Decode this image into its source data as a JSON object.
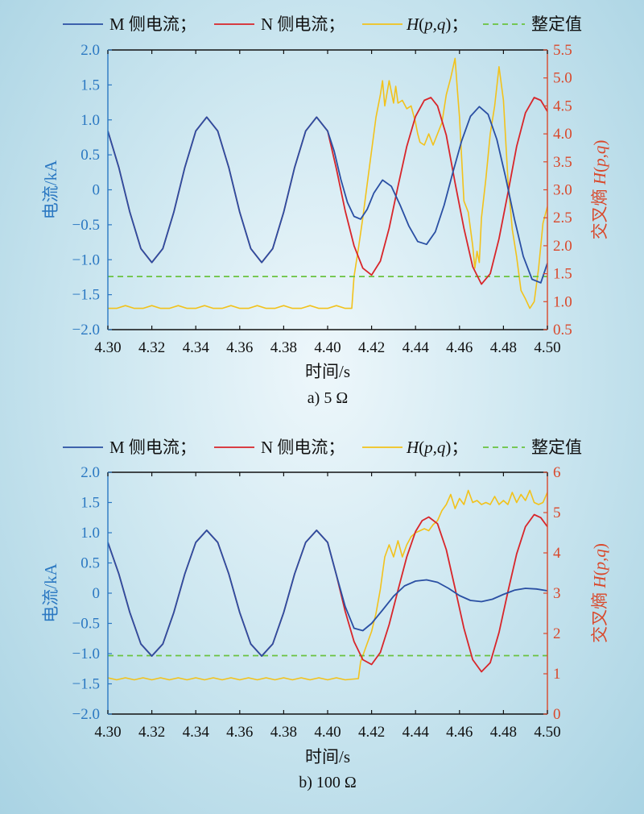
{
  "figure": {
    "legend": {
      "m_current": "M 侧电流；",
      "n_current": "N 侧电流；",
      "cross_entropy": "H(p,q)；",
      "setting": "整定值"
    },
    "colors": {
      "m": "#2a4fa3",
      "n": "#d8252a",
      "h": "#f2c21b",
      "setting": "#6ac23f",
      "left_axis": "#2b78c2",
      "right_axis": "#d9482b"
    }
  },
  "chart_data": [
    {
      "type": "line",
      "caption": "a) 5 Ω",
      "xlabel": "时间/s",
      "ylabel": "电流/kA",
      "y2label": "交叉熵 H(p,q)",
      "xlim": [
        4.3,
        4.5
      ],
      "ylim": [
        -2.0,
        2.0
      ],
      "y2lim": [
        0.5,
        5.5
      ],
      "xticks": [
        "4.30",
        "4.32",
        "4.34",
        "4.36",
        "4.38",
        "4.40",
        "4.42",
        "4.44",
        "4.46",
        "4.48",
        "4.50"
      ],
      "yticks": [
        "2.0",
        "1.5",
        "1.0",
        "0.5",
        "0",
        "−0.5",
        "−1.0",
        "−1.5",
        "−2.0"
      ],
      "y2ticks": [
        "5.5",
        "5.0",
        "4.5",
        "4.0",
        "3.5",
        "3.0",
        "2.5",
        "2.0",
        "1.5",
        "1.0",
        "0.5"
      ],
      "grid": false,
      "legend_position": "top",
      "series": [
        {
          "name": "M 侧电流",
          "axis": "left",
          "x": [
            4.3,
            4.305,
            4.31,
            4.315,
            4.32,
            4.325,
            4.33,
            4.335,
            4.34,
            4.345,
            4.35,
            4.355,
            4.36,
            4.365,
            4.37,
            4.375,
            4.38,
            4.385,
            4.39,
            4.395,
            4.4,
            4.403,
            4.406,
            4.409,
            4.412,
            4.415,
            4.418,
            4.421,
            4.425,
            4.429,
            4.433,
            4.437,
            4.441,
            4.445,
            4.449,
            4.453,
            4.457,
            4.461,
            4.465,
            4.469,
            4.473,
            4.477,
            4.481,
            4.485,
            4.489,
            4.493,
            4.497,
            4.5
          ],
          "y": [
            0.84,
            0.32,
            -0.32,
            -0.84,
            -1.04,
            -0.84,
            -0.32,
            0.32,
            0.84,
            1.04,
            0.84,
            0.32,
            -0.32,
            -0.84,
            -1.04,
            -0.84,
            -0.32,
            0.32,
            0.84,
            1.04,
            0.84,
            0.55,
            0.15,
            -0.18,
            -0.38,
            -0.42,
            -0.28,
            -0.05,
            0.14,
            0.05,
            -0.22,
            -0.52,
            -0.74,
            -0.78,
            -0.6,
            -0.22,
            0.25,
            0.7,
            1.05,
            1.19,
            1.08,
            0.72,
            0.18,
            -0.42,
            -0.95,
            -1.28,
            -1.33,
            -1.05
          ]
        },
        {
          "name": "N 侧电流",
          "axis": "left",
          "x": [
            4.3,
            4.305,
            4.31,
            4.315,
            4.32,
            4.325,
            4.33,
            4.335,
            4.34,
            4.345,
            4.35,
            4.355,
            4.36,
            4.365,
            4.37,
            4.375,
            4.38,
            4.385,
            4.39,
            4.395,
            4.4,
            4.404,
            4.408,
            4.412,
            4.416,
            4.42,
            4.424,
            4.428,
            4.432,
            4.436,
            4.44,
            4.444,
            4.447,
            4.45,
            4.454,
            4.458,
            4.462,
            4.466,
            4.47,
            4.474,
            4.478,
            4.482,
            4.486,
            4.49,
            4.494,
            4.497,
            4.5
          ],
          "y": [
            0.84,
            0.32,
            -0.32,
            -0.84,
            -1.04,
            -0.84,
            -0.32,
            0.32,
            0.84,
            1.04,
            0.84,
            0.32,
            -0.32,
            -0.84,
            -1.04,
            -0.84,
            -0.32,
            0.32,
            0.84,
            1.04,
            0.84,
            0.3,
            -0.3,
            -0.8,
            -1.12,
            -1.22,
            -1.02,
            -0.55,
            0.05,
            0.62,
            1.05,
            1.28,
            1.32,
            1.2,
            0.78,
            0.1,
            -0.55,
            -1.1,
            -1.35,
            -1.2,
            -0.7,
            -0.05,
            0.62,
            1.1,
            1.32,
            1.28,
            1.12
          ]
        },
        {
          "name": "H(p,q)",
          "axis": "right",
          "x": [
            4.3,
            4.304,
            4.308,
            4.312,
            4.316,
            4.32,
            4.324,
            4.328,
            4.332,
            4.336,
            4.34,
            4.344,
            4.348,
            4.352,
            4.356,
            4.36,
            4.364,
            4.368,
            4.372,
            4.376,
            4.38,
            4.384,
            4.388,
            4.392,
            4.396,
            4.4,
            4.404,
            4.408,
            4.411,
            4.412,
            4.414,
            4.416,
            4.418,
            4.42,
            4.422,
            4.424,
            4.425,
            4.426,
            4.428,
            4.43,
            4.431,
            4.432,
            4.434,
            4.436,
            4.438,
            4.44,
            4.441,
            4.442,
            4.444,
            4.446,
            4.448,
            4.45,
            4.452,
            4.454,
            4.456,
            4.458,
            4.459,
            4.46,
            4.462,
            4.464,
            4.466,
            4.467,
            4.468,
            4.469,
            4.47,
            4.472,
            4.474,
            4.476,
            4.478,
            4.48,
            4.482,
            4.484,
            4.486,
            4.488,
            4.49,
            4.492,
            4.494,
            4.496,
            4.498,
            4.5
          ],
          "y": [
            0.88,
            0.88,
            0.93,
            0.88,
            0.88,
            0.93,
            0.88,
            0.88,
            0.93,
            0.88,
            0.88,
            0.93,
            0.88,
            0.88,
            0.93,
            0.88,
            0.88,
            0.93,
            0.88,
            0.88,
            0.93,
            0.88,
            0.88,
            0.93,
            0.88,
            0.88,
            0.93,
            0.88,
            0.88,
            1.45,
            1.95,
            2.5,
            3.1,
            3.7,
            4.3,
            4.7,
            4.95,
            4.5,
            4.95,
            4.55,
            4.85,
            4.55,
            4.6,
            4.45,
            4.5,
            4.2,
            4.0,
            3.85,
            3.8,
            4.0,
            3.8,
            4.0,
            4.2,
            4.7,
            5.0,
            5.35,
            4.8,
            4.3,
            2.8,
            2.6,
            2.0,
            1.6,
            1.9,
            1.7,
            2.5,
            3.2,
            4.0,
            4.5,
            5.2,
            4.6,
            3.2,
            2.3,
            1.8,
            1.2,
            1.05,
            0.88,
            1.0,
            1.6,
            2.4,
            2.7
          ]
        },
        {
          "name": "整定值",
          "axis": "right",
          "x": [
            4.3,
            4.5
          ],
          "y": [
            1.45,
            1.45
          ]
        }
      ]
    },
    {
      "type": "line",
      "caption": "b) 100 Ω",
      "xlabel": "时间/s",
      "ylabel": "电流/kA",
      "y2label": "交叉熵 H(p,q)",
      "xlim": [
        4.3,
        4.5
      ],
      "ylim": [
        -2.0,
        2.0
      ],
      "y2lim": [
        0,
        6
      ],
      "xticks": [
        "4.30",
        "4.32",
        "4.34",
        "4.36",
        "4.38",
        "4.40",
        "4.42",
        "4.44",
        "4.46",
        "4.48",
        "4.50"
      ],
      "yticks": [
        "2.0",
        "1.5",
        "1.0",
        "0.5",
        "0",
        "−0.5",
        "−1.0",
        "−1.5",
        "−2.0"
      ],
      "y2ticks": [
        "6",
        "5",
        "4",
        "3",
        "2",
        "1",
        "0"
      ],
      "grid": false,
      "legend_position": "top",
      "series": [
        {
          "name": "M 侧电流",
          "axis": "left",
          "x": [
            4.3,
            4.305,
            4.31,
            4.315,
            4.32,
            4.325,
            4.33,
            4.335,
            4.34,
            4.345,
            4.35,
            4.355,
            4.36,
            4.365,
            4.37,
            4.375,
            4.38,
            4.385,
            4.39,
            4.395,
            4.4,
            4.404,
            4.408,
            4.412,
            4.416,
            4.42,
            4.425,
            4.43,
            4.435,
            4.44,
            4.445,
            4.45,
            4.455,
            4.46,
            4.465,
            4.47,
            4.475,
            4.48,
            4.485,
            4.49,
            4.495,
            4.5
          ],
          "y": [
            0.84,
            0.32,
            -0.32,
            -0.84,
            -1.04,
            -0.84,
            -0.32,
            0.32,
            0.84,
            1.04,
            0.84,
            0.32,
            -0.32,
            -0.84,
            -1.04,
            -0.84,
            -0.32,
            0.32,
            0.84,
            1.04,
            0.84,
            0.3,
            -0.22,
            -0.58,
            -0.62,
            -0.5,
            -0.28,
            -0.05,
            0.12,
            0.2,
            0.22,
            0.18,
            0.08,
            -0.04,
            -0.12,
            -0.14,
            -0.1,
            -0.02,
            0.05,
            0.08,
            0.07,
            0.04
          ]
        },
        {
          "name": "N 侧电流",
          "axis": "left",
          "x": [
            4.3,
            4.305,
            4.31,
            4.315,
            4.32,
            4.325,
            4.33,
            4.335,
            4.34,
            4.345,
            4.35,
            4.355,
            4.36,
            4.365,
            4.37,
            4.375,
            4.38,
            4.385,
            4.39,
            4.395,
            4.4,
            4.404,
            4.408,
            4.412,
            4.416,
            4.42,
            4.424,
            4.428,
            4.432,
            4.436,
            4.44,
            4.443,
            4.446,
            4.45,
            4.454,
            4.458,
            4.462,
            4.466,
            4.47,
            4.474,
            4.478,
            4.482,
            4.486,
            4.49,
            4.494,
            4.497,
            4.5
          ],
          "y": [
            0.84,
            0.32,
            -0.32,
            -0.84,
            -1.04,
            -0.84,
            -0.32,
            0.32,
            0.84,
            1.04,
            0.84,
            0.32,
            -0.32,
            -0.84,
            -1.04,
            -0.84,
            -0.32,
            0.32,
            0.84,
            1.04,
            0.84,
            0.3,
            -0.3,
            -0.8,
            -1.1,
            -1.18,
            -0.98,
            -0.52,
            0.05,
            0.6,
            1.02,
            1.2,
            1.26,
            1.15,
            0.72,
            0.08,
            -0.58,
            -1.1,
            -1.3,
            -1.15,
            -0.65,
            0.02,
            0.65,
            1.1,
            1.3,
            1.25,
            1.1
          ]
        },
        {
          "name": "H(p,q)",
          "axis": "right",
          "x": [
            4.3,
            4.304,
            4.308,
            4.312,
            4.316,
            4.32,
            4.324,
            4.328,
            4.332,
            4.336,
            4.34,
            4.344,
            4.348,
            4.352,
            4.356,
            4.36,
            4.364,
            4.368,
            4.372,
            4.376,
            4.38,
            4.384,
            4.388,
            4.392,
            4.396,
            4.4,
            4.404,
            4.408,
            4.412,
            4.414,
            4.415,
            4.416,
            4.418,
            4.42,
            4.422,
            4.424,
            4.425,
            4.426,
            4.428,
            4.43,
            4.432,
            4.434,
            4.436,
            4.438,
            4.44,
            4.442,
            4.444,
            4.446,
            4.448,
            4.45,
            4.452,
            4.454,
            4.456,
            4.458,
            4.46,
            4.462,
            4.464,
            4.466,
            4.468,
            4.47,
            4.472,
            4.474,
            4.476,
            4.478,
            4.48,
            4.482,
            4.484,
            4.486,
            4.488,
            4.49,
            4.492,
            4.494,
            4.496,
            4.498,
            4.5
          ],
          "y": [
            0.9,
            0.85,
            0.9,
            0.85,
            0.9,
            0.85,
            0.9,
            0.85,
            0.9,
            0.85,
            0.9,
            0.85,
            0.9,
            0.85,
            0.9,
            0.85,
            0.9,
            0.85,
            0.9,
            0.85,
            0.9,
            0.85,
            0.9,
            0.85,
            0.9,
            0.85,
            0.9,
            0.85,
            0.87,
            0.88,
            1.3,
            1.45,
            1.75,
            2.05,
            2.5,
            3.1,
            3.5,
            3.9,
            4.2,
            3.9,
            4.3,
            3.9,
            4.2,
            4.4,
            4.5,
            4.55,
            4.6,
            4.55,
            4.7,
            4.8,
            5.05,
            5.2,
            5.45,
            5.1,
            5.35,
            5.2,
            5.55,
            5.25,
            5.3,
            5.2,
            5.25,
            5.2,
            5.4,
            5.2,
            5.3,
            5.2,
            5.5,
            5.25,
            5.45,
            5.3,
            5.55,
            5.25,
            5.2,
            5.25,
            5.5
          ]
        },
        {
          "name": "整定值",
          "axis": "right",
          "x": [
            4.3,
            4.5
          ],
          "y": [
            1.45,
            1.45
          ]
        }
      ]
    }
  ]
}
